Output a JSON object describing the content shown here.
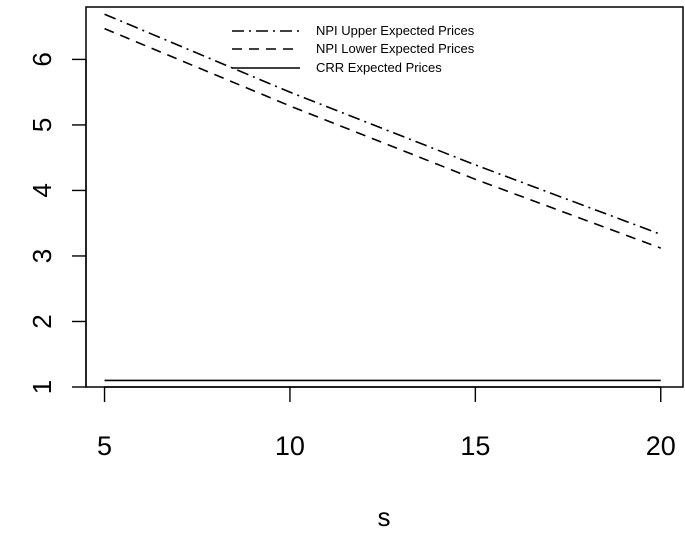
{
  "chart_data": {
    "type": "line",
    "title": "",
    "xlabel": "s",
    "ylabel": "",
    "xlim": [
      4.5,
      20.6
    ],
    "ylim": [
      1.0,
      6.8
    ],
    "x_ticks": [
      5,
      10,
      15,
      20
    ],
    "y_ticks": [
      1,
      2,
      3,
      4,
      5,
      6
    ],
    "grid": false,
    "legend_position": "top-center",
    "series": [
      {
        "name": "NPI Upper Expected Prices",
        "line_style": "dotdash",
        "color": "#000000",
        "x": [
          5,
          10,
          15,
          20
        ],
        "y": [
          6.69,
          5.5,
          4.39,
          3.33
        ]
      },
      {
        "name": "NPI Lower Expected Prices",
        "line_style": "dashed",
        "color": "#000000",
        "x": [
          5,
          10,
          15,
          20
        ],
        "y": [
          6.47,
          5.29,
          4.17,
          3.12
        ]
      },
      {
        "name": "CRR Expected Prices",
        "line_style": "solid",
        "color": "#000000",
        "x": [
          5,
          20
        ],
        "y": [
          1.1,
          1.1
        ]
      }
    ]
  }
}
